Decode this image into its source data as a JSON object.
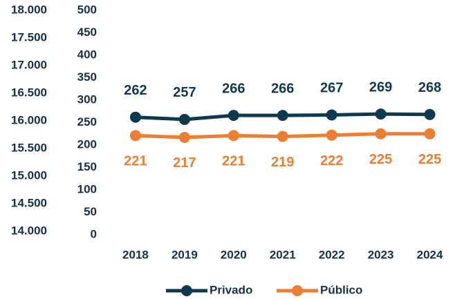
{
  "chart_data": {
    "type": "line",
    "categories": [
      "2018",
      "2019",
      "2020",
      "2021",
      "2022",
      "2023",
      "2024"
    ],
    "series": [
      {
        "name": "Privado",
        "color": "#0f3a4d",
        "axis": "y2",
        "values": [
          262,
          257,
          266,
          266,
          267,
          269,
          268
        ]
      },
      {
        "name": "Público",
        "color": "#ed7d31",
        "axis": "y2",
        "values": [
          221,
          217,
          221,
          219,
          222,
          225,
          225
        ]
      }
    ],
    "ylim": [
      14000,
      18000
    ],
    "yticks": [
      {
        "value": 14000,
        "label": "14.000"
      },
      {
        "value": 14500,
        "label": "14.500"
      },
      {
        "value": 15000,
        "label": "15.000"
      },
      {
        "value": 15500,
        "label": "15.500"
      },
      {
        "value": 16000,
        "label": "16.000"
      },
      {
        "value": 16500,
        "label": "16.500"
      },
      {
        "value": 17000,
        "label": "17.000"
      },
      {
        "value": 17500,
        "label": "17.500"
      },
      {
        "value": 18000,
        "label": "18.000"
      }
    ],
    "y2lim": [
      0,
      500
    ],
    "y2ticks": [
      0,
      50,
      100,
      150,
      200,
      250,
      300,
      350,
      400,
      450,
      500
    ],
    "grid": false,
    "legend": "bottom"
  }
}
